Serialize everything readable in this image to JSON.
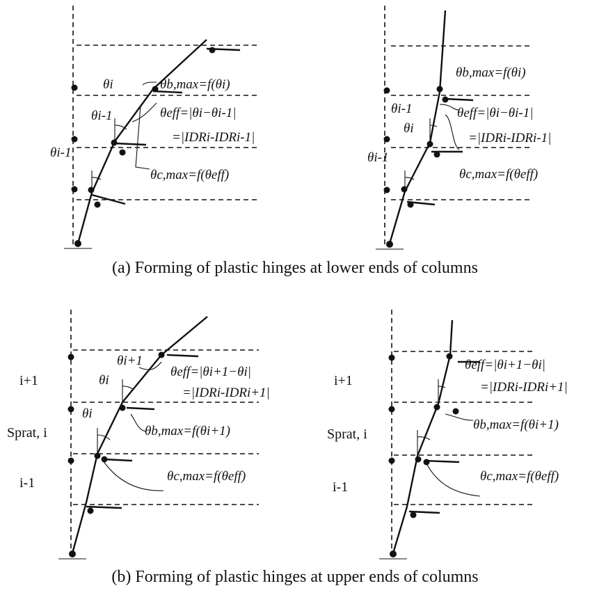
{
  "captions": {
    "a": "(a) Forming of plastic hinges at lower ends of columns",
    "b": "(b) Forming of plastic hinges at upper ends of columns"
  },
  "panel_a_left": {
    "theta_i": "θi",
    "theta_im1_top": "θi-1",
    "theta_im1_bottom": "θi-1",
    "theta_b": "θb,max=f(θi)",
    "theta_eff": "θeff=|θi−θi-1|",
    "idr": "=|IDRi-IDRi-1|",
    "theta_c": "θc,max=f(θeff)"
  },
  "panel_a_right": {
    "theta_im1_top": "θi-1",
    "theta_i": "θi",
    "theta_im1_bottom": "θi-1",
    "theta_b": "θb,max=f(θi)",
    "theta_eff": "θeff=|θi−θi-1|",
    "idr": "=|IDRi-IDRi-1|",
    "theta_c": "θc,max=f(θeff)"
  },
  "panel_b_left": {
    "theta_ip1": "θi+1",
    "theta_i_top": "θi",
    "theta_i_bottom": "θi",
    "theta_eff": "θeff=|θi+1−θi|",
    "idr": "=|IDRi-IDRi+1|",
    "theta_b": "θb,max=f(θi+1)",
    "theta_c": "θc,max=f(θeff)",
    "story_upper": "i+1",
    "story_mid": "Sprat, i",
    "story_lower": "i-1"
  },
  "panel_b_right": {
    "theta_eff": "θeff=|θi+1−θi|",
    "idr": "=|IDRi-IDRi+1|",
    "theta_b": "θb,max=f(θi+1)",
    "theta_c": "θc,max=f(θeff)",
    "story_upper": "i+1",
    "story_mid": "Sprat, i",
    "story_lower": "i-1"
  }
}
